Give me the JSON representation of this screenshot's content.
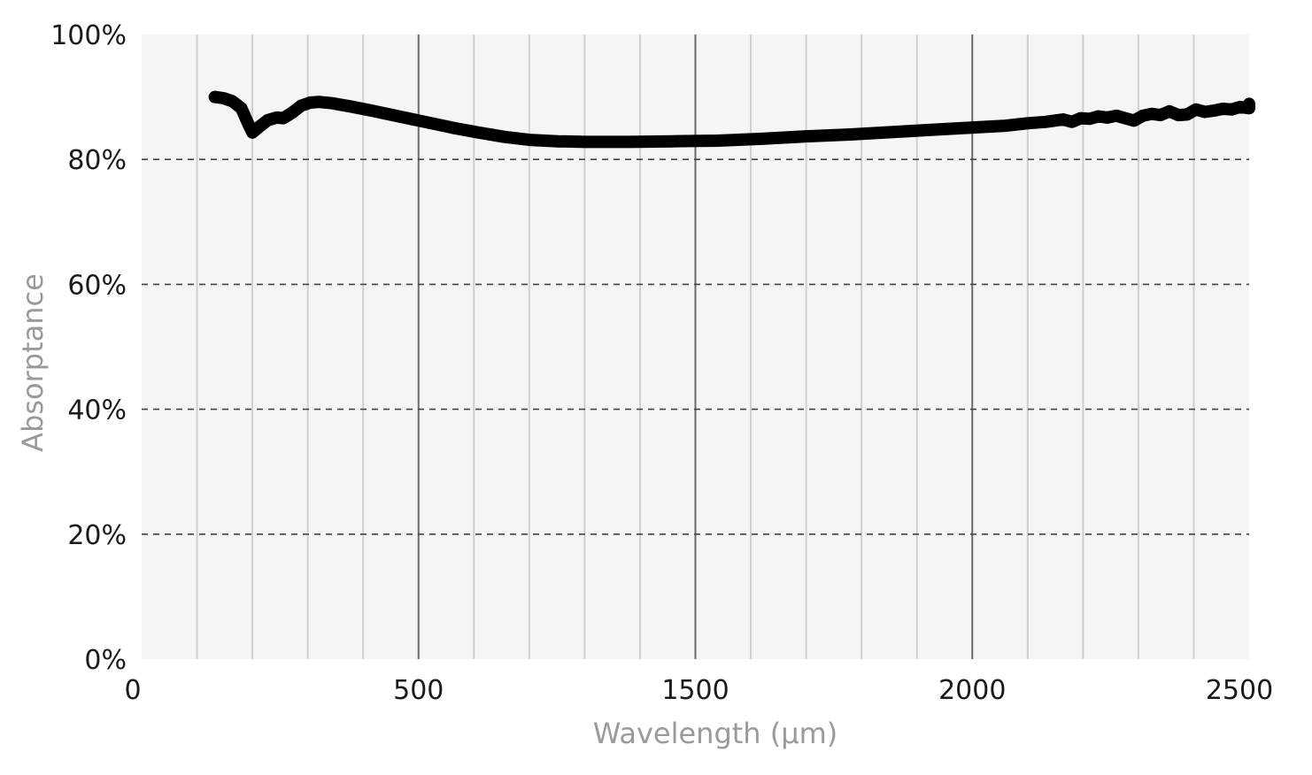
{
  "chart_data": {
    "type": "line",
    "xlabel": "Wavelength (μm)",
    "ylabel": "Absorptance",
    "xlim": [
      0,
      2500
    ],
    "ylim": [
      0,
      100
    ],
    "x_tick_labels": [
      "0",
      "500",
      "1500",
      "2000",
      "2500"
    ],
    "y_tick_labels": [
      "0%",
      "20%",
      "40%",
      "60%",
      "80%",
      "100%"
    ],
    "grid": {
      "vertical_major": true,
      "vertical_minor": true,
      "horizontal_dashed": true
    },
    "colors": {
      "plot_background": "#f5f5f5",
      "line": "#000000",
      "axis_title": "#9a9a9a"
    },
    "series": [
      {
        "values": [
          [
            165,
            90.0
          ],
          [
            185,
            89.8
          ],
          [
            205,
            89.3
          ],
          [
            225,
            88.2
          ],
          [
            240,
            85.8
          ],
          [
            250,
            84.3
          ],
          [
            265,
            85.2
          ],
          [
            285,
            86.3
          ],
          [
            305,
            86.7
          ],
          [
            320,
            86.6
          ],
          [
            340,
            87.5
          ],
          [
            360,
            88.6
          ],
          [
            380,
            89.1
          ],
          [
            400,
            89.2
          ],
          [
            430,
            89.0
          ],
          [
            470,
            88.5
          ],
          [
            520,
            87.8
          ],
          [
            580,
            86.9
          ],
          [
            640,
            86.0
          ],
          [
            700,
            85.1
          ],
          [
            760,
            84.3
          ],
          [
            820,
            83.6
          ],
          [
            880,
            83.1
          ],
          [
            940,
            82.9
          ],
          [
            1000,
            82.8
          ],
          [
            1100,
            82.8
          ],
          [
            1200,
            82.9
          ],
          [
            1300,
            83.0
          ],
          [
            1400,
            83.3
          ],
          [
            1500,
            83.7
          ],
          [
            1600,
            84.0
          ],
          [
            1700,
            84.4
          ],
          [
            1800,
            84.8
          ],
          [
            1900,
            85.2
          ],
          [
            1950,
            85.4
          ],
          [
            2000,
            85.8
          ],
          [
            2040,
            86.0
          ],
          [
            2060,
            86.2
          ],
          [
            2080,
            86.4
          ],
          [
            2100,
            86.0
          ],
          [
            2120,
            86.6
          ],
          [
            2140,
            86.5
          ],
          [
            2160,
            86.9
          ],
          [
            2180,
            86.7
          ],
          [
            2200,
            87.0
          ],
          [
            2220,
            86.6
          ],
          [
            2240,
            86.2
          ],
          [
            2260,
            87.0
          ],
          [
            2280,
            87.3
          ],
          [
            2300,
            87.1
          ],
          [
            2320,
            87.7
          ],
          [
            2340,
            87.1
          ],
          [
            2360,
            87.2
          ],
          [
            2380,
            88.0
          ],
          [
            2400,
            87.6
          ],
          [
            2420,
            87.8
          ],
          [
            2440,
            88.1
          ],
          [
            2460,
            88.0
          ],
          [
            2480,
            88.4
          ],
          [
            2500,
            88.2
          ],
          [
            2520,
            88.3
          ],
          [
            2540,
            88.7
          ],
          [
            2560,
            88.4
          ],
          [
            2580,
            88.9
          ],
          [
            2600,
            88.6
          ],
          [
            2620,
            88.5
          ]
        ]
      }
    ]
  }
}
